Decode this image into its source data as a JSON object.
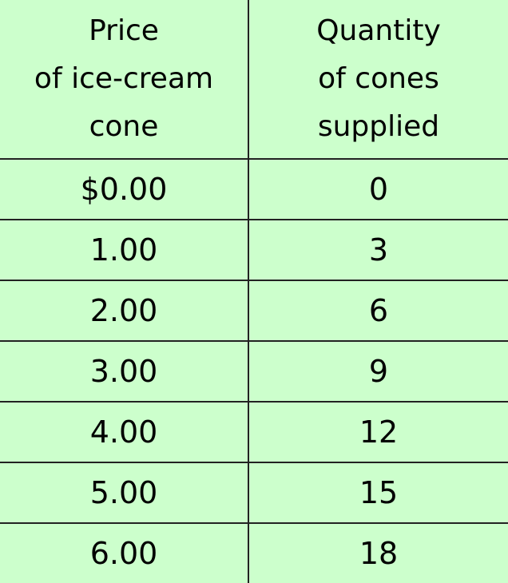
{
  "table": {
    "headers": [
      [
        "Price",
        "of ice-cream",
        "cone"
      ],
      [
        "Quantity",
        "of cones",
        "supplied"
      ]
    ],
    "rows": [
      [
        "$0.00",
        "0"
      ],
      [
        "1.00",
        "3"
      ],
      [
        "2.00",
        "6"
      ],
      [
        "3.00",
        "9"
      ],
      [
        "4.00",
        "12"
      ],
      [
        "5.00",
        "15"
      ],
      [
        "6.00",
        "18"
      ]
    ]
  },
  "colors": {
    "background": "#ccffcc",
    "lines": "#222222"
  }
}
